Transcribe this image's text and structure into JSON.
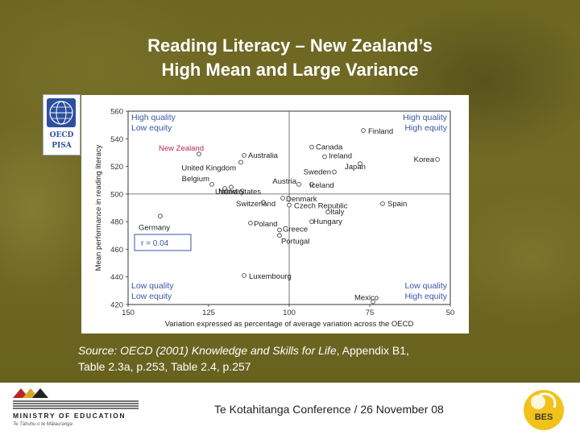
{
  "slide": {
    "title_line1": "Reading Literacy – New Zealand’s",
    "title_line2": "High Mean and Large Variance",
    "source_prefix": "Source: ",
    "source_italic": "OECD (2001) Knowledge and Skills for Life",
    "source_line1_rest": ", Appendix B1,",
    "source_line2": "Table 2.3a, p.253, Table 2.4, p.257",
    "footer_text": "Te Kotahitanga Conference / 26 November 08",
    "moe_name": "MINISTRY OF EDUCATION",
    "moe_sub": "Te Tāhuhu o te Mātauranga",
    "oecd_top": "OECD",
    "oecd_bottom": "PISA",
    "bes_label": "BES"
  },
  "colors": {
    "background": "#6b6420",
    "quadrant_label": "#3b55a8",
    "highlight_country": "#c0245a",
    "corr_box": "#3b55a8"
  },
  "chart_data": {
    "type": "scatter",
    "xlabel": "Variation expressed as percentage of average variation across the OECD",
    "ylabel": "Mean performance in reading literacy",
    "xlim": [
      150,
      50
    ],
    "ylim": [
      420,
      560
    ],
    "x_reversed": true,
    "x_ticks": [
      150,
      125,
      100,
      75,
      50
    ],
    "y_ticks": [
      420,
      440,
      460,
      480,
      500,
      520,
      540,
      560
    ],
    "x_reference": 100,
    "y_reference": 500,
    "grid": false,
    "quadrant_labels": [
      {
        "text": [
          "High quality",
          "Low equity"
        ],
        "pos": "top-left"
      },
      {
        "text": [
          "High quality",
          "High equity"
        ],
        "pos": "top-right"
      },
      {
        "text": [
          "Low quality",
          "Low equity"
        ],
        "pos": "bottom-left"
      },
      {
        "text": [
          "Low quality",
          "High equity"
        ],
        "pos": "bottom-right"
      }
    ],
    "correlation_label": "r = 0.04",
    "points": [
      {
        "name": "Finland",
        "x": 77,
        "y": 546
      },
      {
        "name": "Canada",
        "x": 93,
        "y": 534
      },
      {
        "name": "New Zealand",
        "x": 128,
        "y": 529,
        "highlight": true
      },
      {
        "name": "Australia",
        "x": 114,
        "y": 528
      },
      {
        "name": "Ireland",
        "x": 89,
        "y": 527
      },
      {
        "name": "Korea",
        "x": 54,
        "y": 525
      },
      {
        "name": "Japan",
        "x": 78,
        "y": 522
      },
      {
        "name": "United Kingdom",
        "x": 115,
        "y": 523
      },
      {
        "name": "Sweden",
        "x": 86,
        "y": 516
      },
      {
        "name": "Austria",
        "x": 97,
        "y": 507
      },
      {
        "name": "Belgium",
        "x": 124,
        "y": 507
      },
      {
        "name": "Iceland",
        "x": 93,
        "y": 507
      },
      {
        "name": "United States",
        "x": 120,
        "y": 504
      },
      {
        "name": "Norway",
        "x": 118,
        "y": 505
      },
      {
        "name": "Denmark",
        "x": 102,
        "y": 497
      },
      {
        "name": "Switzerland",
        "x": 108,
        "y": 494
      },
      {
        "name": "Spain",
        "x": 71,
        "y": 493
      },
      {
        "name": "Czech Republic",
        "x": 100,
        "y": 492
      },
      {
        "name": "Italy",
        "x": 88,
        "y": 487
      },
      {
        "name": "Germany",
        "x": 140,
        "y": 484
      },
      {
        "name": "Poland",
        "x": 112,
        "y": 479
      },
      {
        "name": "Hungary",
        "x": 93,
        "y": 480
      },
      {
        "name": "Greece",
        "x": 103,
        "y": 474
      },
      {
        "name": "Portugal",
        "x": 103,
        "y": 470
      },
      {
        "name": "Luxembourg",
        "x": 114,
        "y": 441
      },
      {
        "name": "Mexico",
        "x": 74,
        "y": 422
      }
    ]
  }
}
